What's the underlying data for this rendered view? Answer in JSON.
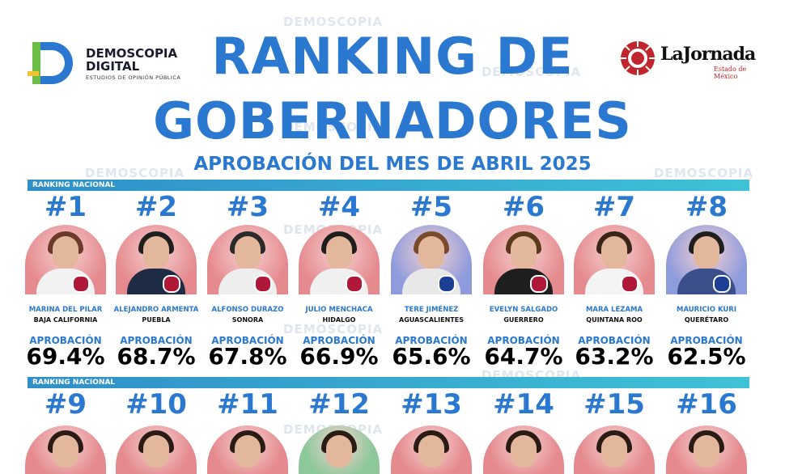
{
  "watermark": "DEMOSCOPIA",
  "header": {
    "logo_left_title_1": "DEMOSCOPIA",
    "logo_left_title_2": "DIGITAL",
    "logo_left_sub": "ESTUDIOS DE OPINIÓN PÚBLICA",
    "logo_right_name": "LaJornada",
    "logo_right_sub": "Estado de México",
    "title_line1": "RANKING DE",
    "title_line2": "GOBERNADORES",
    "subtitle": "APROBACIÓN DEL MES DE ABRIL 2025"
  },
  "section_label": "RANKING NACIONAL",
  "approval_label": "APROBACIÓN",
  "colors": {
    "accent": "#2a78cf",
    "morena_bg": "#e58a8e",
    "pan_bg": "#8e9bdc",
    "morena_badge": "#b0183a",
    "pan_badge": "#1c3f94"
  },
  "row1": [
    {
      "rank": "#1",
      "name": "MARINA DEL PILAR",
      "state": "BAJA CALIFORNIA",
      "approval": "69.4%",
      "party": "morena"
    },
    {
      "rank": "#2",
      "name": "ALEJANDRO ARMENTA",
      "state": "PUEBLA",
      "approval": "68.7%",
      "party": "morena"
    },
    {
      "rank": "#3",
      "name": "ALFONSO DURAZO",
      "state": "SONORA",
      "approval": "67.8%",
      "party": "morena"
    },
    {
      "rank": "#4",
      "name": "JULIO MENCHACA",
      "state": "HIDALGO",
      "approval": "66.9%",
      "party": "morena"
    },
    {
      "rank": "#5",
      "name": "TERE JIMÉNEZ",
      "state": "AGUASCALIENTES",
      "approval": "65.6%",
      "party": "pan"
    },
    {
      "rank": "#6",
      "name": "EVELYN SALGADO",
      "state": "GUERRERO",
      "approval": "64.7%",
      "party": "morena"
    },
    {
      "rank": "#7",
      "name": "MARA LEZAMA",
      "state": "QUINTANA ROO",
      "approval": "63.2%",
      "party": "morena"
    },
    {
      "rank": "#8",
      "name": "MAURICIO KURI",
      "state": "QUERÉTARO",
      "approval": "62.5%",
      "party": "pan"
    }
  ],
  "row2": [
    {
      "rank": "#9",
      "party": "morena"
    },
    {
      "rank": "#10",
      "party": "morena"
    },
    {
      "rank": "#11",
      "party": "morena"
    },
    {
      "rank": "#12",
      "party": "pri"
    },
    {
      "rank": "#13",
      "party": "morena"
    },
    {
      "rank": "#14",
      "party": "morena"
    },
    {
      "rank": "#15",
      "party": "morena"
    },
    {
      "rank": "#16",
      "party": "morena"
    }
  ]
}
